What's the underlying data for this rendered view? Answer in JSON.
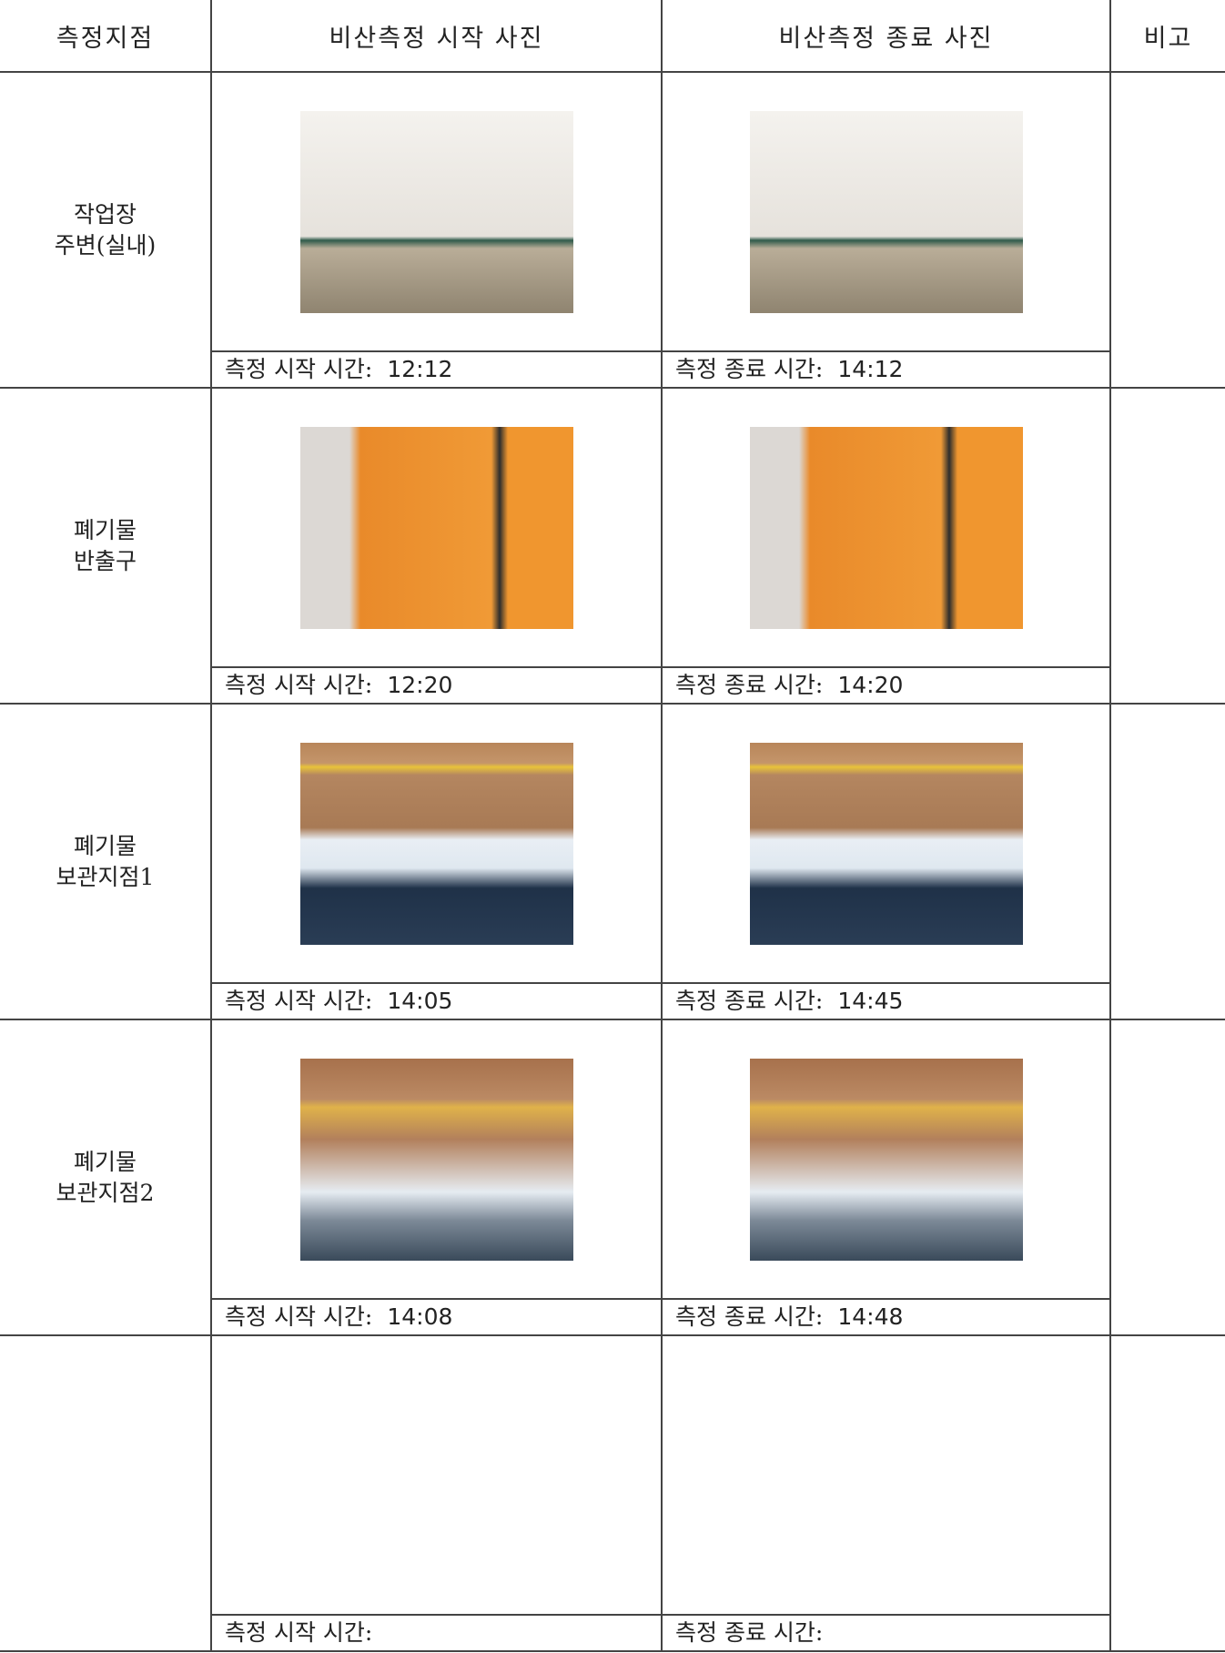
{
  "header": [
    "측정지점",
    "비산측정 시작 사진",
    "비산측정 종료 사진",
    "비고"
  ],
  "rows": [
    {
      "location": [
        "작업장",
        "주변(실내)"
      ],
      "start_label": "측정 시작 시간:",
      "start_time": "12:12",
      "end_label": "측정 종료 시간:",
      "end_time": "14:12"
    },
    {
      "location": [
        "폐기물",
        "반출구"
      ],
      "start_label": "측정 시작 시간:",
      "start_time": "12:20",
      "end_label": "측정 종료 시간:",
      "end_time": "14:20"
    },
    {
      "location": [
        "폐기물",
        "보관지점1"
      ],
      "start_label": "측정 시작 시간:",
      "start_time": "14:05",
      "end_label": "측정 종료 시간:",
      "end_time": "14:45"
    },
    {
      "location": [
        "폐기물",
        "보관지점2"
      ],
      "start_label": "측정 시작 시간:",
      "start_time": "14:08",
      "end_label": "측정 종료 시간:",
      "end_time": "14:48"
    },
    {
      "start_label": "측정 시작 시간:",
      "end_label": "측정 종료 시간:"
    }
  ]
}
